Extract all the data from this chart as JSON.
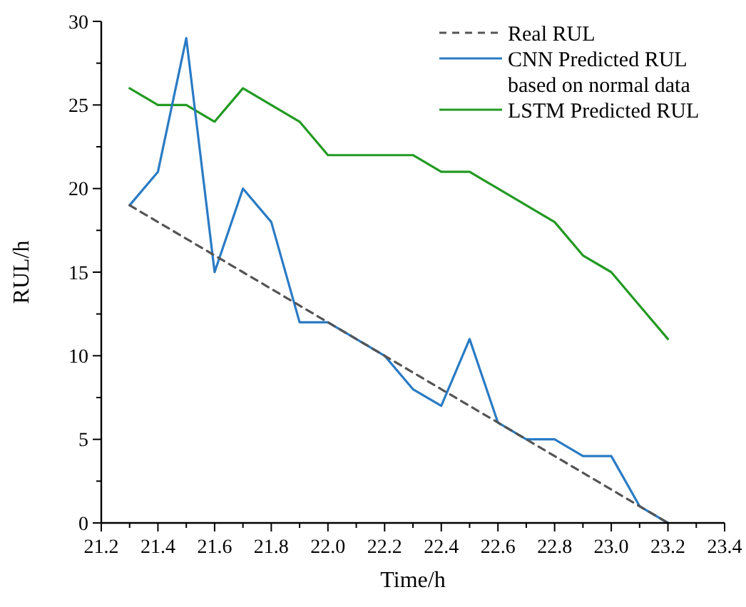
{
  "chart_data": {
    "type": "line",
    "xlabel": "Time/h",
    "ylabel": "RUL/h",
    "x": [
      21.3,
      21.4,
      21.5,
      21.6,
      21.7,
      21.8,
      21.9,
      22.0,
      22.1,
      22.2,
      22.3,
      22.4,
      22.5,
      22.6,
      22.7,
      22.8,
      22.9,
      23.0,
      23.1,
      23.2
    ],
    "series": [
      {
        "name": "Real RUL",
        "color": "#555555",
        "line_style": "dashed",
        "values": [
          19,
          18,
          17,
          16,
          15,
          14,
          13,
          12,
          11,
          10,
          9,
          8,
          7,
          6,
          5,
          4,
          3,
          2,
          1,
          0
        ]
      },
      {
        "name": "CNN Predicted RUL\nbased on normal data",
        "color": "#2a7bc4",
        "line_style": "solid",
        "values": [
          19,
          21,
          29,
          15,
          20,
          18,
          12,
          12,
          11,
          10,
          8,
          7,
          11,
          6,
          5,
          5,
          4,
          4,
          1,
          0
        ]
      },
      {
        "name": "LSTM Predicted RUL",
        "color": "#229a22",
        "line_style": "solid",
        "values": [
          26,
          25,
          25,
          24,
          26,
          25,
          24,
          22,
          22,
          22,
          22,
          21,
          21,
          20,
          19,
          18,
          16,
          15,
          13,
          11
        ]
      }
    ],
    "xlim": [
      21.2,
      23.4
    ],
    "xticks": [
      {
        "value": 21.2,
        "label": "21.2"
      },
      {
        "value": 21.3,
        "label": null
      },
      {
        "value": 21.4,
        "label": "21.4"
      },
      {
        "value": 21.5,
        "label": null
      },
      {
        "value": 21.6,
        "label": "21.6"
      },
      {
        "value": 21.7,
        "label": null
      },
      {
        "value": 21.8,
        "label": "21.8"
      },
      {
        "value": 21.9,
        "label": null
      },
      {
        "value": 22.0,
        "label": "22.0"
      },
      {
        "value": 22.1,
        "label": null
      },
      {
        "value": 22.2,
        "label": "22.2"
      },
      {
        "value": 22.3,
        "label": null
      },
      {
        "value": 22.4,
        "label": "22.4"
      },
      {
        "value": 22.5,
        "label": null
      },
      {
        "value": 22.6,
        "label": "22.6"
      },
      {
        "value": 22.7,
        "label": null
      },
      {
        "value": 22.8,
        "label": "22.8"
      },
      {
        "value": 22.9,
        "label": null
      },
      {
        "value": 23.0,
        "label": "23.0"
      },
      {
        "value": 23.1,
        "label": null
      },
      {
        "value": 23.2,
        "label": "23.2"
      },
      {
        "value": 23.3,
        "label": null
      },
      {
        "value": 23.4,
        "label": "23.4"
      }
    ],
    "ylim": [
      0,
      30
    ],
    "yticks": [
      0,
      {
        "value": 2.5,
        "label": null
      },
      5,
      {
        "value": 7.5,
        "label": null
      },
      10,
      {
        "value": 12.5,
        "label": null
      },
      15,
      {
        "value": 17.5,
        "label": null
      },
      20,
      {
        "value": 22.5,
        "label": null
      },
      25,
      {
        "value": 27.5,
        "label": null
      },
      30
    ],
    "grid": false,
    "legend": "top right",
    "marker": "none"
  }
}
